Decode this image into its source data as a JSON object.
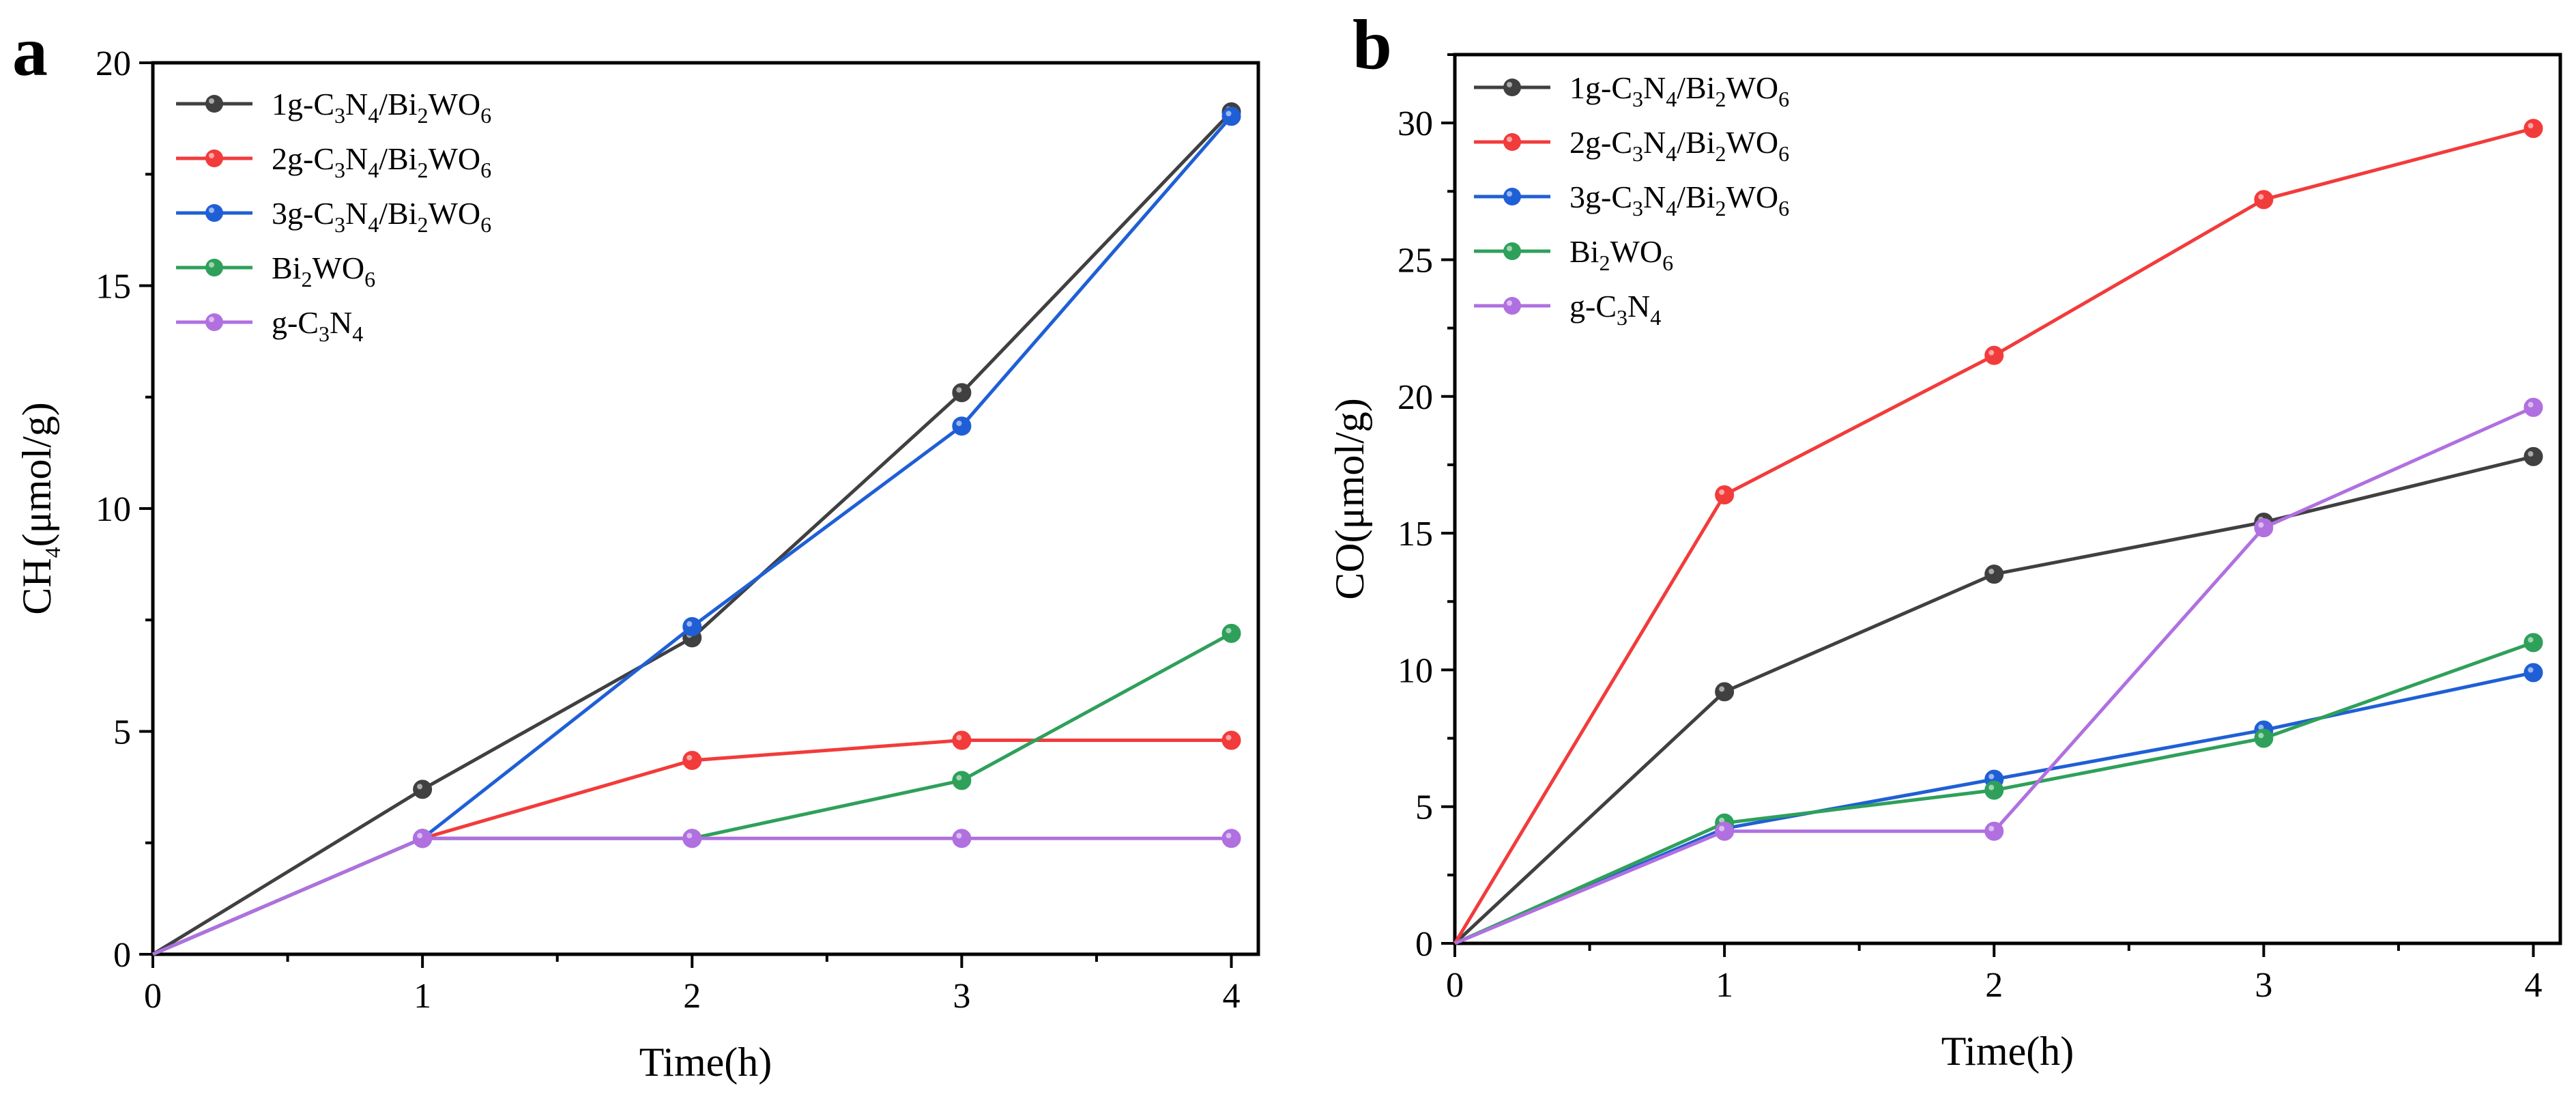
{
  "chart_data": [
    {
      "panel": "a",
      "type": "line",
      "xlabel": "Time(h)",
      "ylabel": {
        "base": "CH",
        "sub": "4",
        "rest": "(μmol/g)"
      },
      "xlim": [
        0,
        4.1
      ],
      "ylim": [
        0,
        20
      ],
      "x_ticks": [
        "0",
        "1",
        "2",
        "3",
        "4"
      ],
      "y_ticks": [
        "0",
        "5",
        "10",
        "15",
        "20"
      ],
      "x": [
        0,
        1,
        2,
        3,
        4
      ],
      "legend_position": "top-left",
      "series": [
        {
          "name": "1g-C3N4/Bi2WO6",
          "color": "#404040",
          "values": [
            0,
            3.7,
            7.1,
            12.6,
            18.9
          ]
        },
        {
          "name": "2g-C3N4/Bi2WO6",
          "color": "#f23b3b",
          "values": [
            0,
            2.6,
            4.35,
            4.8,
            4.8
          ]
        },
        {
          "name": "3g-C3N4/Bi2WO6",
          "color": "#1f5fd6",
          "values": [
            0,
            2.6,
            7.35,
            11.85,
            18.8
          ]
        },
        {
          "name": "Bi2WO6",
          "color": "#2ea05a",
          "values": [
            0,
            2.6,
            2.6,
            3.9,
            7.2
          ]
        },
        {
          "name": "g-C3N4",
          "color": "#b070e0",
          "values": [
            0,
            2.6,
            2.6,
            2.6,
            2.6
          ]
        }
      ]
    },
    {
      "panel": "b",
      "type": "line",
      "xlabel": "Time(h)",
      "ylabel": {
        "base": "CO",
        "sub": "",
        "rest": "(μmol/g)"
      },
      "xlim": [
        0,
        4.1
      ],
      "ylim": [
        0,
        32.5
      ],
      "x_ticks": [
        "0",
        "1",
        "2",
        "3",
        "4"
      ],
      "y_ticks": [
        "0",
        "5",
        "10",
        "15",
        "20",
        "25",
        "30"
      ],
      "x": [
        0,
        1,
        2,
        3,
        4
      ],
      "legend_position": "top-left",
      "series": [
        {
          "name": "1g-C3N4/Bi2WO6",
          "color": "#404040",
          "values": [
            0,
            9.2,
            13.5,
            15.4,
            17.8
          ]
        },
        {
          "name": "2g-C3N4/Bi2WO6",
          "color": "#f23b3b",
          "values": [
            0,
            16.4,
            21.5,
            27.2,
            29.8
          ]
        },
        {
          "name": "3g-C3N4/Bi2WO6",
          "color": "#1f5fd6",
          "values": [
            0,
            4.2,
            6.0,
            7.8,
            9.9
          ]
        },
        {
          "name": "Bi2WO6",
          "color": "#2ea05a",
          "values": [
            0,
            4.4,
            5.6,
            7.5,
            11.0
          ]
        },
        {
          "name": "g-C3N4",
          "color": "#b070e0",
          "values": [
            0,
            4.1,
            4.1,
            15.2,
            19.6
          ]
        }
      ]
    }
  ]
}
